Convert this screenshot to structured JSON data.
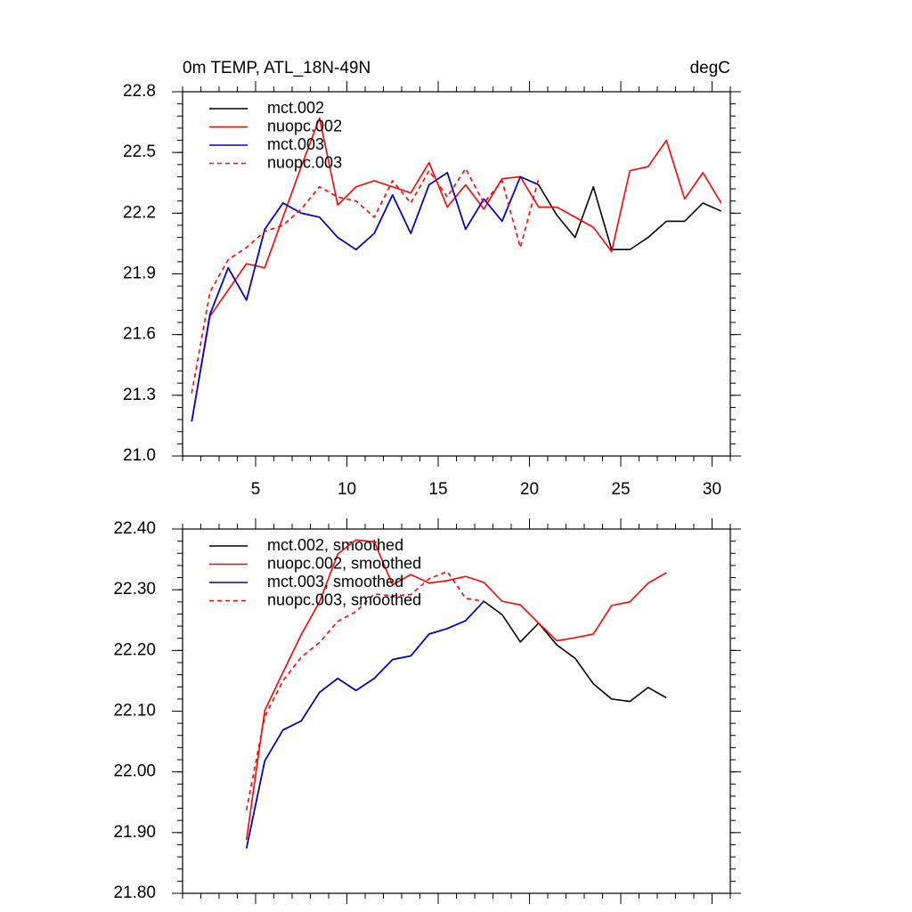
{
  "chart_data": [
    {
      "type": "line",
      "title": "0m TEMP, ATL_18N-49N",
      "units": "degC",
      "x": [
        1.5,
        2.5,
        3.5,
        4.5,
        5.5,
        6.5,
        7.5,
        8.5,
        9.5,
        10.5,
        11.5,
        12.5,
        13.5,
        14.5,
        15.5,
        16.5,
        17.5,
        18.5,
        19.5,
        20.5,
        21.5,
        22.5,
        23.5,
        24.5,
        25.5,
        26.5,
        27.5,
        28.5,
        29.5,
        30.5
      ],
      "xlim": [
        1,
        31
      ],
      "xticks": [
        5,
        10,
        15,
        20,
        25,
        30
      ],
      "ylim": [
        21.0,
        22.8
      ],
      "yticks": [
        {
          "value": 21.0,
          "label": "21.0"
        },
        21.3,
        21.6,
        21.9,
        22.2,
        22.5,
        22.8
      ],
      "series": [
        {
          "name": "mct.002",
          "color": "#000000",
          "dashed": false,
          "values": [
            21.17,
            21.7,
            21.93,
            21.77,
            22.12,
            22.25,
            22.2,
            22.18,
            22.08,
            22.02,
            22.1,
            22.29,
            22.1,
            22.34,
            22.4,
            22.12,
            22.27,
            22.16,
            22.38,
            22.34,
            22.19,
            22.08,
            22.33,
            22.02,
            22.02,
            22.08,
            22.16,
            22.16,
            22.25,
            22.21
          ]
        },
        {
          "name": "nuopc.002",
          "color": "#ff0000",
          "dashed": false,
          "values": [
            21.17,
            21.69,
            21.82,
            21.95,
            21.93,
            22.18,
            22.43,
            22.67,
            22.24,
            22.33,
            22.36,
            22.33,
            22.3,
            22.45,
            22.23,
            22.34,
            22.22,
            22.37,
            22.38,
            22.23,
            22.23,
            22.18,
            22.13,
            22.01,
            22.41,
            22.43,
            22.56,
            22.27,
            22.4,
            22.25
          ]
        },
        {
          "name": "mct.003",
          "color": "#0000cc",
          "dashed": false,
          "values": [
            21.17,
            21.7,
            21.93,
            21.77,
            22.12,
            22.25,
            22.2,
            22.18,
            22.08,
            22.02,
            22.1,
            22.29,
            22.1,
            22.34,
            22.4,
            22.12,
            22.27,
            22.16,
            22.38,
            22.34,
            null,
            null,
            null,
            null,
            null,
            null,
            null,
            null,
            null,
            null
          ]
        },
        {
          "name": "nuopc.003",
          "color": "#ff0000",
          "dashed": true,
          "values": [
            21.31,
            21.81,
            21.97,
            22.03,
            22.11,
            22.14,
            22.22,
            22.33,
            22.28,
            22.26,
            22.18,
            22.36,
            22.25,
            22.41,
            22.28,
            22.42,
            22.25,
            22.36,
            22.03,
            22.37,
            null,
            null,
            null,
            null,
            null,
            null,
            null,
            null,
            null,
            null
          ]
        }
      ]
    },
    {
      "type": "line",
      "x": [
        4.5,
        5.5,
        6.5,
        7.5,
        8.5,
        9.5,
        10.5,
        11.5,
        12.5,
        13.5,
        14.5,
        15.5,
        16.5,
        17.5,
        18.5,
        19.5,
        20.5,
        21.5,
        22.5,
        23.5,
        24.5,
        25.5,
        26.5,
        27.5
      ],
      "xlim": [
        1,
        31
      ],
      "xticks": [
        5,
        10,
        15,
        20,
        25,
        30
      ],
      "ylim": [
        21.8,
        22.4
      ],
      "yticks": [
        {
          "value": 21.8,
          "label": "21.80"
        },
        {
          "value": 21.9,
          "label": "21.90"
        },
        {
          "value": 22.0,
          "label": "22.00"
        },
        {
          "value": 22.1,
          "label": "22.10"
        },
        {
          "value": 22.2,
          "label": "22.20"
        },
        {
          "value": 22.3,
          "label": "22.30"
        },
        {
          "value": 22.4,
          "label": "22.40"
        }
      ],
      "series": [
        {
          "name": "mct.002, smoothed",
          "color": "#000000",
          "dashed": false,
          "values": [
            21.874,
            22.018,
            22.069,
            22.084,
            22.131,
            22.154,
            22.134,
            22.154,
            22.185,
            22.191,
            22.227,
            22.236,
            22.249,
            22.281,
            22.259,
            22.214,
            22.245,
            22.209,
            22.187,
            22.145,
            22.12,
            22.116,
            22.139,
            22.122
          ]
        },
        {
          "name": "nuopc.002, smoothed",
          "color": "#ff0000",
          "dashed": false,
          "values": [
            21.888,
            22.101,
            22.164,
            22.226,
            22.28,
            22.359,
            22.382,
            22.379,
            22.308,
            22.325,
            22.311,
            22.315,
            22.322,
            22.312,
            22.281,
            22.275,
            22.245,
            22.216,
            22.221,
            22.227,
            22.274,
            22.28,
            22.311,
            22.328
          ]
        },
        {
          "name": "mct.003, smoothed",
          "color": "#0000cc",
          "dashed": false,
          "values": [
            21.874,
            22.018,
            22.069,
            22.084,
            22.131,
            22.154,
            22.134,
            22.154,
            22.185,
            22.191,
            22.227,
            22.236,
            22.249,
            22.281,
            null,
            null,
            null,
            null,
            null,
            null,
            null,
            null,
            null,
            null
          ]
        },
        {
          "name": "nuopc.003, smoothed",
          "color": "#ff0000",
          "dashed": true,
          "values": [
            21.937,
            22.091,
            22.15,
            22.189,
            22.213,
            22.248,
            22.264,
            22.293,
            22.29,
            22.292,
            22.318,
            22.33,
            22.286,
            22.281,
            null,
            null,
            null,
            null,
            null,
            null,
            null,
            null,
            null,
            null
          ]
        }
      ]
    }
  ]
}
